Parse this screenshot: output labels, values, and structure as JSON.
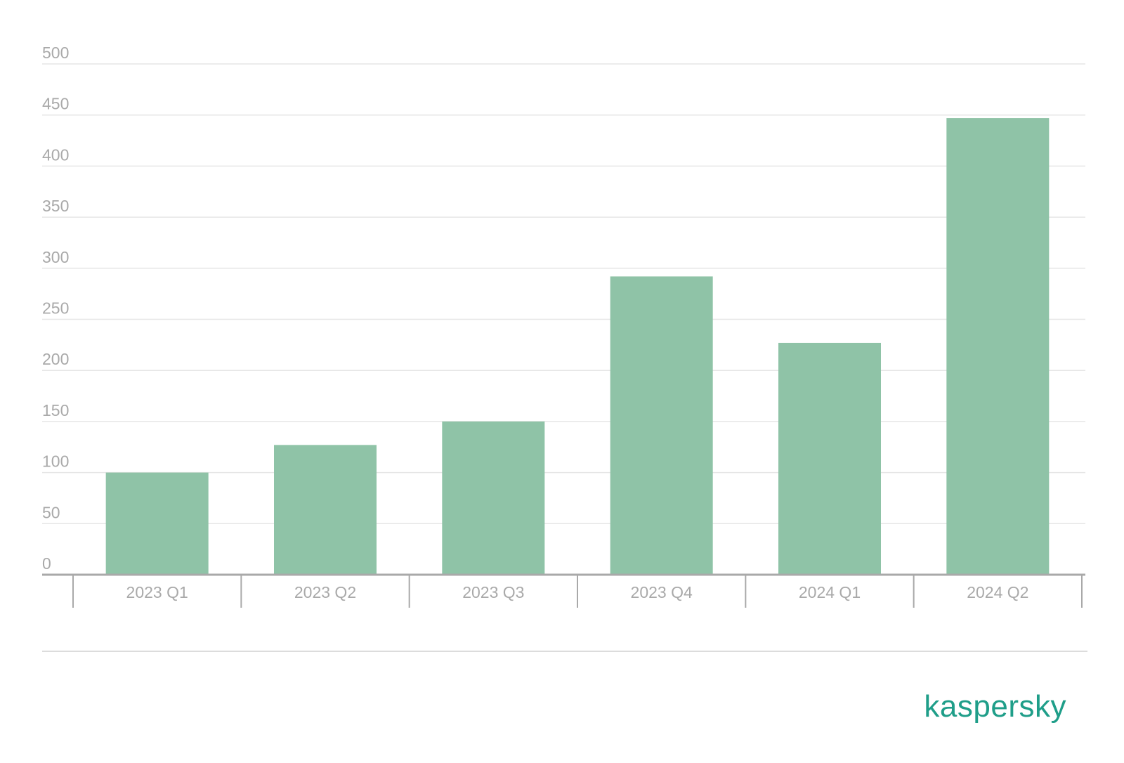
{
  "chart_data": {
    "type": "bar",
    "categories": [
      "2023 Q1",
      "2023 Q2",
      "2023 Q3",
      "2023 Q4",
      "2024 Q1",
      "2024 Q2"
    ],
    "values": [
      100,
      127,
      150,
      292,
      227,
      447
    ],
    "title": "",
    "xlabel": "",
    "ylabel": "",
    "ylim": [
      0,
      500
    ],
    "yticks": [
      0,
      50,
      100,
      150,
      200,
      250,
      300,
      350,
      400,
      450,
      500
    ],
    "grid": true,
    "legend": "none",
    "colors": {
      "bar": "#8fc3a7",
      "grid": "#e6e6e6",
      "axis": "#a9a9a9",
      "text": "#a9a9a9"
    }
  },
  "brand": {
    "logo_text": "kaspersky",
    "color": "#1f9e89"
  }
}
